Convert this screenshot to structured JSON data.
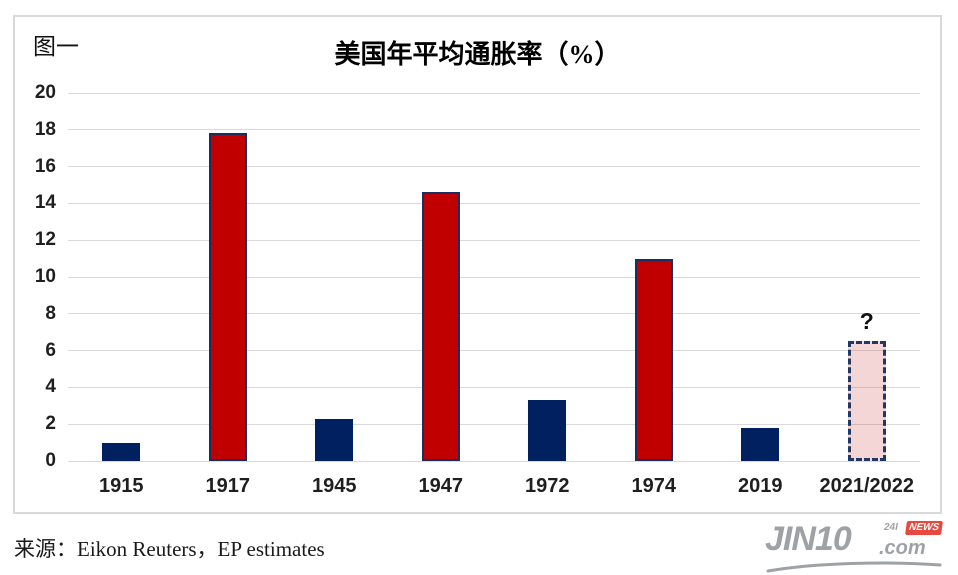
{
  "figure_label": "图一",
  "source_line": "来源：Eikon Reuters，EP estimates",
  "logo": {
    "main": "JIN10",
    "suffix": ".com",
    "badge_left": "24I",
    "badge_right": "NEWS"
  },
  "colors": {
    "navy": "#002060",
    "red": "#c00000",
    "red_border": "#1b2f5e",
    "pink": "rgba(192,0,0,0.16)",
    "dash_border": "#1f3864",
    "grid": "#d9d9d9",
    "frame_border": "#d9d9d9",
    "logo_gray": "#9EA2A5",
    "news_red": "#e8483e"
  },
  "chart_data": {
    "type": "bar",
    "title": "美国年平均通胀率（%）",
    "categories": [
      "1915",
      "1917",
      "1945",
      "1947",
      "1972",
      "1974",
      "2019",
      "2021/2022"
    ],
    "values": [
      1.0,
      17.8,
      2.3,
      14.6,
      3.3,
      11.0,
      1.8,
      6.5
    ],
    "bar_styles": [
      "navy",
      "red",
      "navy",
      "red",
      "navy",
      "red",
      "navy",
      "forecast"
    ],
    "xlabel": "",
    "ylabel": "",
    "ylim": [
      0,
      20
    ],
    "ytick_step": 2,
    "grid": true,
    "legend": false,
    "annotation": {
      "text": "?",
      "category": "2021/2022"
    }
  }
}
